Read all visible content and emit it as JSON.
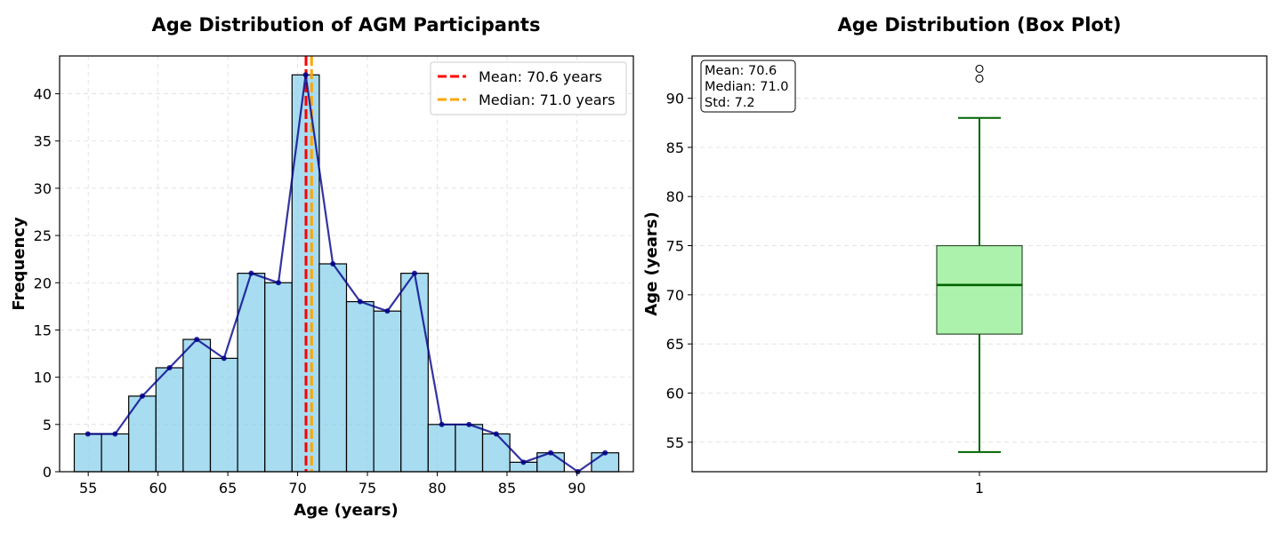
{
  "chart_data": [
    {
      "type": "bar",
      "title": "Age Distribution of AGM Participants",
      "xlabel": "Age (years)",
      "ylabel": "Frequency",
      "xlim": [
        52.95,
        94.05
      ],
      "ylim": [
        0,
        44
      ],
      "xticks": [
        55,
        60,
        65,
        70,
        75,
        80,
        85,
        90
      ],
      "yticks": [
        0,
        5,
        10,
        15,
        20,
        25,
        30,
        35,
        40
      ],
      "grid": true,
      "legend_position": "top-right",
      "bin_edges": [
        54,
        55.95,
        57.9,
        59.85,
        61.8,
        63.75,
        65.7,
        67.65,
        69.6,
        71.55,
        73.5,
        75.45,
        77.4,
        79.35,
        81.3,
        83.25,
        85.2,
        87.15,
        89.1,
        91.05,
        93
      ],
      "values": [
        4,
        4,
        8,
        11,
        14,
        12,
        21,
        20,
        42,
        22,
        18,
        17,
        21,
        5,
        5,
        4,
        1,
        2,
        0,
        2
      ],
      "bar_color": "#87CEEB",
      "line_color": "#00008B",
      "reference_lines": [
        {
          "name": "Mean: 70.6 years",
          "x": 70.6,
          "color": "#FF0000"
        },
        {
          "name": "Median: 71.0 years",
          "x": 71.0,
          "color": "#FFA500"
        }
      ]
    },
    {
      "type": "box",
      "title": "Age Distribution (Box Plot)",
      "xlabel": "",
      "ylabel": "Age (years)",
      "ylim": [
        52,
        94.3
      ],
      "yticks": [
        55,
        60,
        65,
        70,
        75,
        80,
        85,
        90
      ],
      "xtick": "1",
      "grid": true,
      "box": {
        "whisker_low": 54,
        "q1": 66,
        "median": 71,
        "q3": 75,
        "whisker_high": 88
      },
      "outliers": [
        92,
        93
      ],
      "box_color": "#90EE90",
      "line_color": "#006400",
      "stats_box": [
        "Mean: 70.6",
        "Median: 71.0",
        "Std: 7.2"
      ]
    }
  ]
}
